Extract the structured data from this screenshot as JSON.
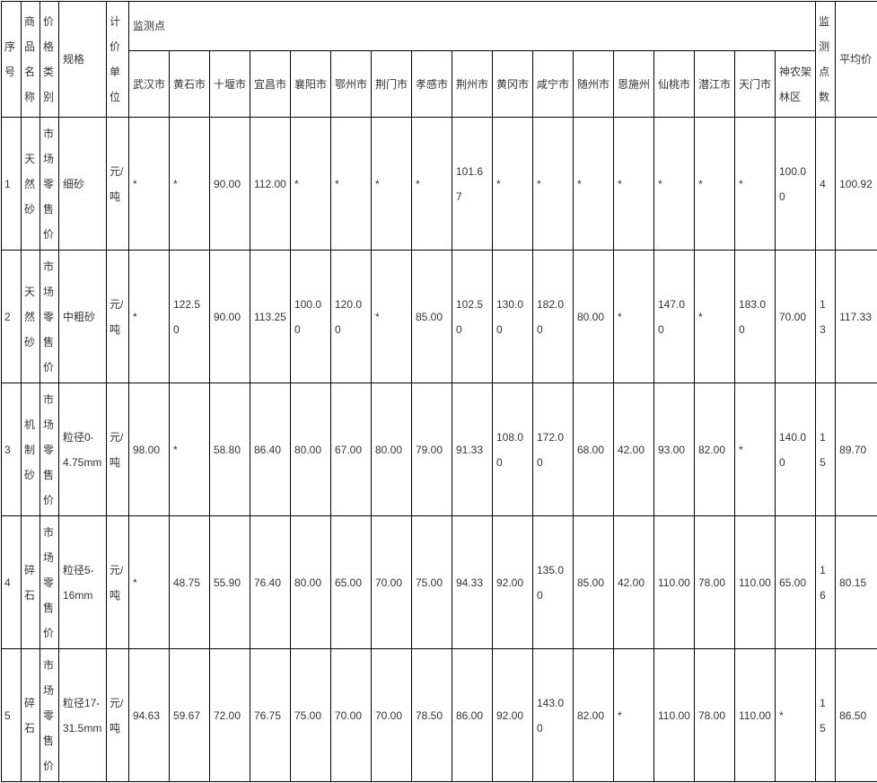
{
  "table": {
    "headers": {
      "index": "序号",
      "product": "商品名称",
      "category": "价格类别",
      "spec": "规格",
      "unit": "计价单位",
      "monitoring_points": "监测点",
      "point_count": "监测点数",
      "average": "平均价"
    },
    "cities": [
      "武汉市",
      "黄石市",
      "十堰市",
      "宜昌市",
      "襄阳市",
      "鄂州市",
      "荆门市",
      "孝感市",
      "荆州市",
      "黄冈市",
      "咸宁市",
      "随州市",
      "恩施州",
      "仙桃市",
      "潜江市",
      "天门市",
      "神农架林区"
    ],
    "missing_marker": "*",
    "rows": [
      {
        "index": "1",
        "product": "天然砂",
        "category": "市场零售价",
        "spec": "细砂",
        "unit": "元/吨",
        "values": [
          "*",
          "*",
          "90.00",
          "112.00",
          "*",
          "*",
          "*",
          "*",
          "101.67",
          "*",
          "*",
          "*",
          "*",
          "*",
          "*",
          "*",
          "100.00"
        ],
        "point_count": "4",
        "average": "100.92"
      },
      {
        "index": "2",
        "product": "天然砂",
        "category": "市场零售价",
        "spec": "中粗砂",
        "unit": "元/吨",
        "values": [
          "*",
          "122.50",
          "90.00",
          "113.25",
          "100.00",
          "120.00",
          "*",
          "85.00",
          "102.50",
          "130.00",
          "182.00",
          "80.00",
          "*",
          "147.00",
          "*",
          "183.00",
          "70.00"
        ],
        "point_count": "13",
        "average": "117.33"
      },
      {
        "index": "3",
        "product": "机制砂",
        "category": "市场零售价",
        "spec": "粒径0-4.75mm",
        "unit": "元/吨",
        "values": [
          "98.00",
          "*",
          "58.80",
          "86.40",
          "80.00",
          "67.00",
          "80.00",
          "79.00",
          "91.33",
          "108.00",
          "172.00",
          "68.00",
          "42.00",
          "93.00",
          "82.00",
          "*",
          "140.00"
        ],
        "point_count": "15",
        "average": "89.70"
      },
      {
        "index": "4",
        "product": "碎石",
        "category": "市场零售价",
        "spec": "粒径5-16mm",
        "unit": "元/吨",
        "values": [
          "*",
          "48.75",
          "55.90",
          "76.40",
          "80.00",
          "65.00",
          "70.00",
          "75.00",
          "94.33",
          "92.00",
          "135.00",
          "85.00",
          "42.00",
          "110.00",
          "78.00",
          "110.00",
          "65.00"
        ],
        "point_count": "16",
        "average": "80.15"
      },
      {
        "index": "5",
        "product": "碎石",
        "category": "市场零售价",
        "spec": "粒径17-31.5mm",
        "unit": "元/吨",
        "values": [
          "94.63",
          "59.67",
          "72.00",
          "76.75",
          "75.00",
          "70.00",
          "70.00",
          "78.50",
          "86.00",
          "92.00",
          "143.00",
          "82.00",
          "*",
          "110.00",
          "78.00",
          "110.00",
          "*"
        ],
        "point_count": "15",
        "average": "86.50"
      }
    ]
  }
}
